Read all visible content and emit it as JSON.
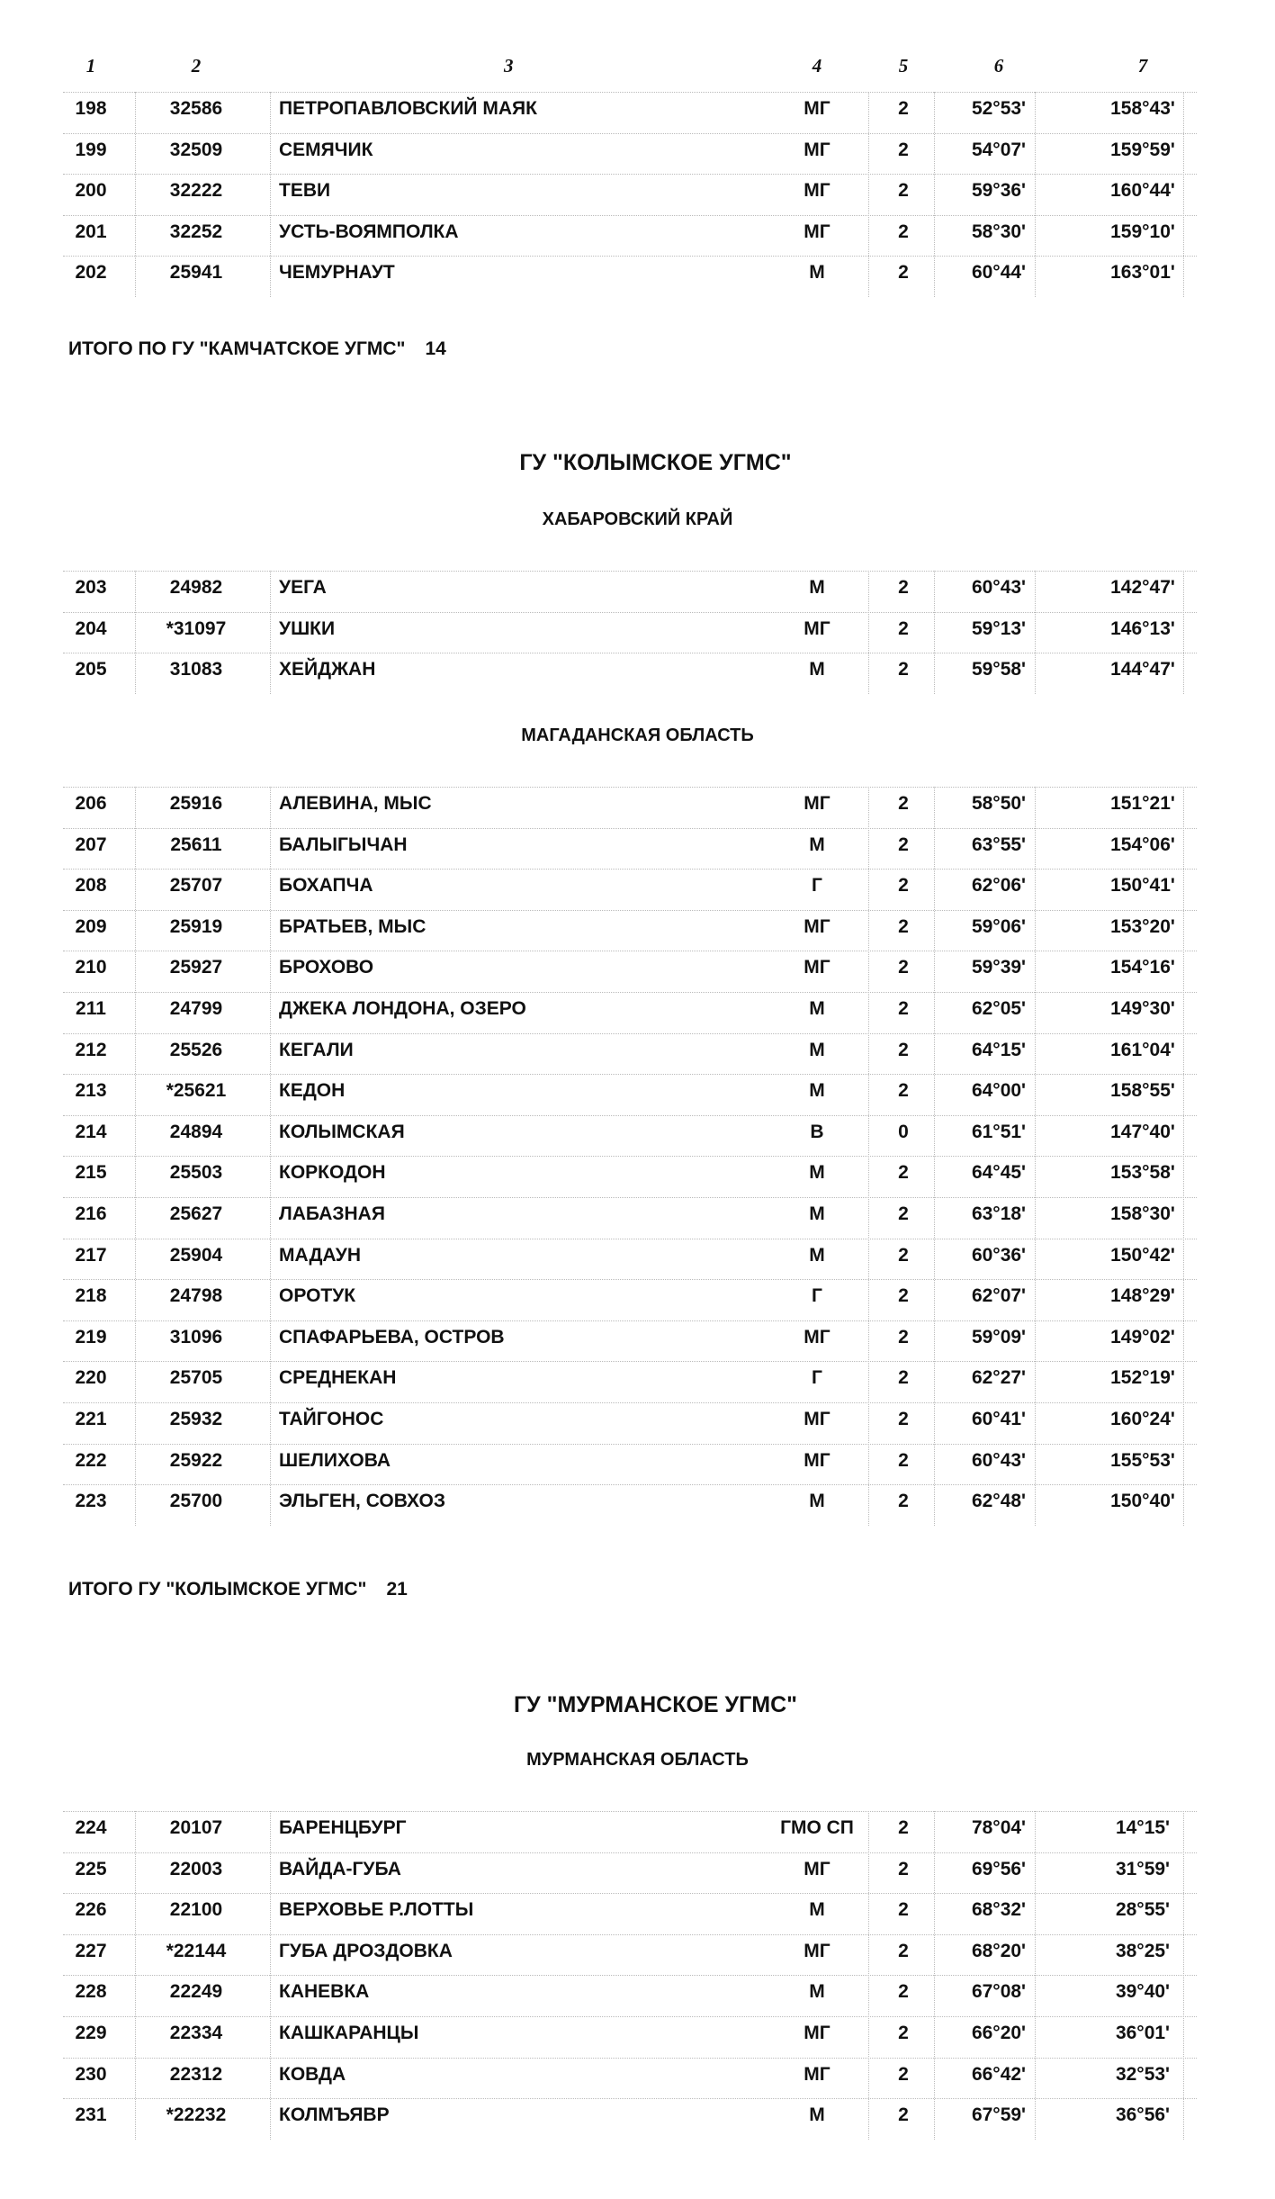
{
  "column_headers": [
    "1",
    "2",
    "3",
    "4",
    "5",
    "6",
    "7"
  ],
  "blocks": [
    {
      "type": "rows",
      "rows": [
        [
          "198",
          "32586",
          "ПЕТРОПАВЛОВСКИЙ МАЯК",
          "МГ",
          "2",
          "52°53'",
          "158°43'"
        ],
        [
          "199",
          "32509",
          "СЕМЯЧИК",
          "МГ",
          "2",
          "54°07'",
          "159°59'"
        ],
        [
          "200",
          "32222",
          "ТЕВИ",
          "МГ",
          "2",
          "59°36'",
          "160°44'"
        ],
        [
          "201",
          "32252",
          "УСТЬ-ВОЯМПОЛКА",
          "МГ",
          "2",
          "58°30'",
          "159°10'"
        ],
        [
          "202",
          "25941",
          "ЧЕМУРНАУТ",
          "М",
          "2",
          "60°44'",
          "163°01'"
        ]
      ]
    },
    {
      "type": "total",
      "label": "ИТОГО  ПО ГУ \"КАМЧАТСКОЕ УГМС\"",
      "count": "14"
    },
    {
      "type": "title",
      "text": "ГУ \"КОЛЫМСКОЕ УГМС\""
    },
    {
      "type": "sub",
      "text": "ХАБАРОВСКИЙ КРАЙ"
    },
    {
      "type": "rows",
      "rows": [
        [
          "203",
          "24982",
          "УЕГА",
          "М",
          "2",
          "60°43'",
          "142°47'"
        ],
        [
          "204",
          "*31097",
          "УШКИ",
          "МГ",
          "2",
          "59°13'",
          "146°13'"
        ],
        [
          "205",
          "31083",
          "ХЕЙДЖАН",
          "М",
          "2",
          "59°58'",
          "144°47'"
        ]
      ]
    },
    {
      "type": "sub",
      "text": "МАГАДАНСКАЯ ОБЛАСТЬ"
    },
    {
      "type": "rows",
      "rows": [
        [
          "206",
          "25916",
          "АЛЕВИНА, МЫС",
          "МГ",
          "2",
          "58°50'",
          "151°21'"
        ],
        [
          "207",
          "25611",
          "БАЛЫГЫЧАН",
          "М",
          "2",
          "63°55'",
          "154°06'"
        ],
        [
          "208",
          "25707",
          "БОХАПЧА",
          "Г",
          "2",
          "62°06'",
          "150°41'"
        ],
        [
          "209",
          "25919",
          "БРАТЬЕВ, МЫС",
          "МГ",
          "2",
          "59°06'",
          "153°20'"
        ],
        [
          "210",
          "25927",
          "БРОХОВО",
          "МГ",
          "2",
          "59°39'",
          "154°16'"
        ],
        [
          "211",
          "24799",
          "ДЖЕКА ЛОНДОНА, ОЗЕРО",
          "М",
          "2",
          "62°05'",
          "149°30'"
        ],
        [
          "212",
          "25526",
          "КЕГАЛИ",
          "М",
          "2",
          "64°15'",
          "161°04'"
        ],
        [
          "213",
          "*25621",
          "КЕДОН",
          "М",
          "2",
          "64°00'",
          "158°55'"
        ],
        [
          "214",
          "24894",
          "КОЛЫМСКАЯ",
          "В",
          "0",
          "61°51'",
          "147°40'"
        ],
        [
          "215",
          "25503",
          "КОРКОДОН",
          "М",
          "2",
          "64°45'",
          "153°58'"
        ],
        [
          "216",
          "25627",
          "ЛАБАЗНАЯ",
          "М",
          "2",
          "63°18'",
          "158°30'"
        ],
        [
          "217",
          "25904",
          "МАДАУН",
          "М",
          "2",
          "60°36'",
          "150°42'"
        ],
        [
          "218",
          "24798",
          "ОРОТУК",
          "Г",
          "2",
          "62°07'",
          "148°29'"
        ],
        [
          "219",
          "31096",
          "СПАФАРЬЕВА, ОСТРОВ",
          "МГ",
          "2",
          "59°09'",
          "149°02'"
        ],
        [
          "220",
          "25705",
          "СРЕДНЕКАН",
          "Г",
          "2",
          "62°27'",
          "152°19'"
        ],
        [
          "221",
          "25932",
          "ТАЙГОНОС",
          "МГ",
          "2",
          "60°41'",
          "160°24'"
        ],
        [
          "222",
          "25922",
          "ШЕЛИХОВА",
          "МГ",
          "2",
          "60°43'",
          "155°53'"
        ],
        [
          "223",
          "25700",
          "ЭЛЬГЕН, СОВХОЗ",
          "М",
          "2",
          "62°48'",
          "150°40'"
        ]
      ]
    },
    {
      "type": "total",
      "label": "ИТОГО  ГУ \"КОЛЫМСКОЕ УГМС\"",
      "count": "21"
    },
    {
      "type": "title",
      "text": "ГУ \"МУРМАНСКОЕ УГМС\""
    },
    {
      "type": "sub",
      "text": "МУРМАНСКАЯ ОБЛАСТЬ"
    },
    {
      "type": "rows",
      "rows": [
        [
          "224",
          "20107",
          "БАРЕНЦБУРГ",
          "ГМО СП",
          "2",
          "78°04'",
          "14°15'"
        ],
        [
          "225",
          "22003",
          "ВАЙДА-ГУБА",
          "МГ",
          "2",
          "69°56'",
          "31°59'"
        ],
        [
          "226",
          "22100",
          "ВЕРХОВЬЕ Р.ЛОТТЫ",
          "М",
          "2",
          "68°32'",
          "28°55'"
        ],
        [
          "227",
          "*22144",
          "ГУБА ДРОЗДОВКА",
          "МГ",
          "2",
          "68°20'",
          "38°25'"
        ],
        [
          "228",
          "22249",
          "КАНЕВКА",
          "М",
          "2",
          "67°08'",
          "39°40'"
        ],
        [
          "229",
          "22334",
          "КАШКАРАНЦЫ",
          "МГ",
          "2",
          "66°20'",
          "36°01'"
        ],
        [
          "230",
          "22312",
          "КОВДА",
          "МГ",
          "2",
          "66°42'",
          "32°53'"
        ],
        [
          "231",
          "*22232",
          "КОЛМЪЯВР",
          "М",
          "2",
          "67°59'",
          "36°56'"
        ]
      ]
    }
  ]
}
